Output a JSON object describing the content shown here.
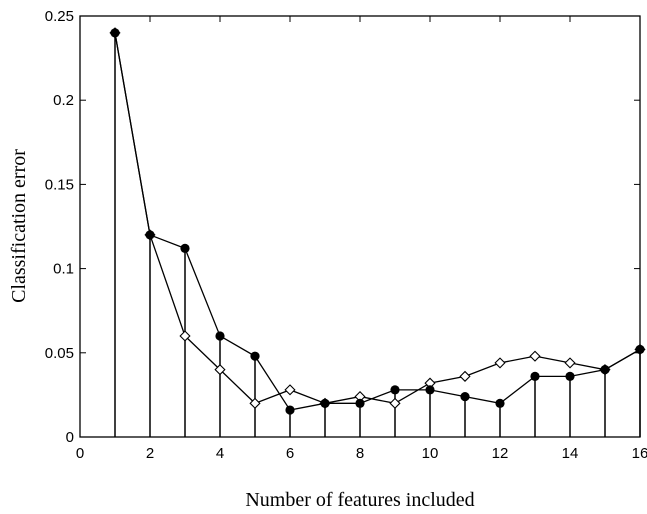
{
  "chart_data": {
    "type": "line",
    "title": "",
    "xlabel": "Number of features included",
    "ylabel": "Classification error",
    "xlim": [
      0,
      16
    ],
    "ylim": [
      0,
      0.25
    ],
    "xticks": [
      "0",
      "2",
      "4",
      "6",
      "8",
      "10",
      "12",
      "14",
      "16"
    ],
    "yticks": [
      "0",
      "0.05",
      "0.1",
      "0.15",
      "0.2",
      "0.25"
    ],
    "grid": false,
    "x": [
      1,
      2,
      3,
      4,
      5,
      6,
      7,
      8,
      9,
      10,
      11,
      12,
      13,
      14,
      15,
      16
    ],
    "series": [
      {
        "marker": "filled-circle",
        "stems": true,
        "values": [
          0.24,
          0.12,
          0.112,
          0.06,
          0.048,
          0.016,
          0.02,
          0.02,
          0.028,
          0.028,
          0.024,
          0.02,
          0.036,
          0.036,
          0.04,
          0.052
        ]
      },
      {
        "marker": "open-diamond",
        "stems": false,
        "values": [
          0.24,
          0.12,
          0.06,
          0.04,
          0.02,
          0.028,
          0.02,
          0.024,
          0.02,
          0.032,
          0.036,
          0.044,
          0.048,
          0.044,
          0.04,
          0.052
        ]
      }
    ]
  }
}
